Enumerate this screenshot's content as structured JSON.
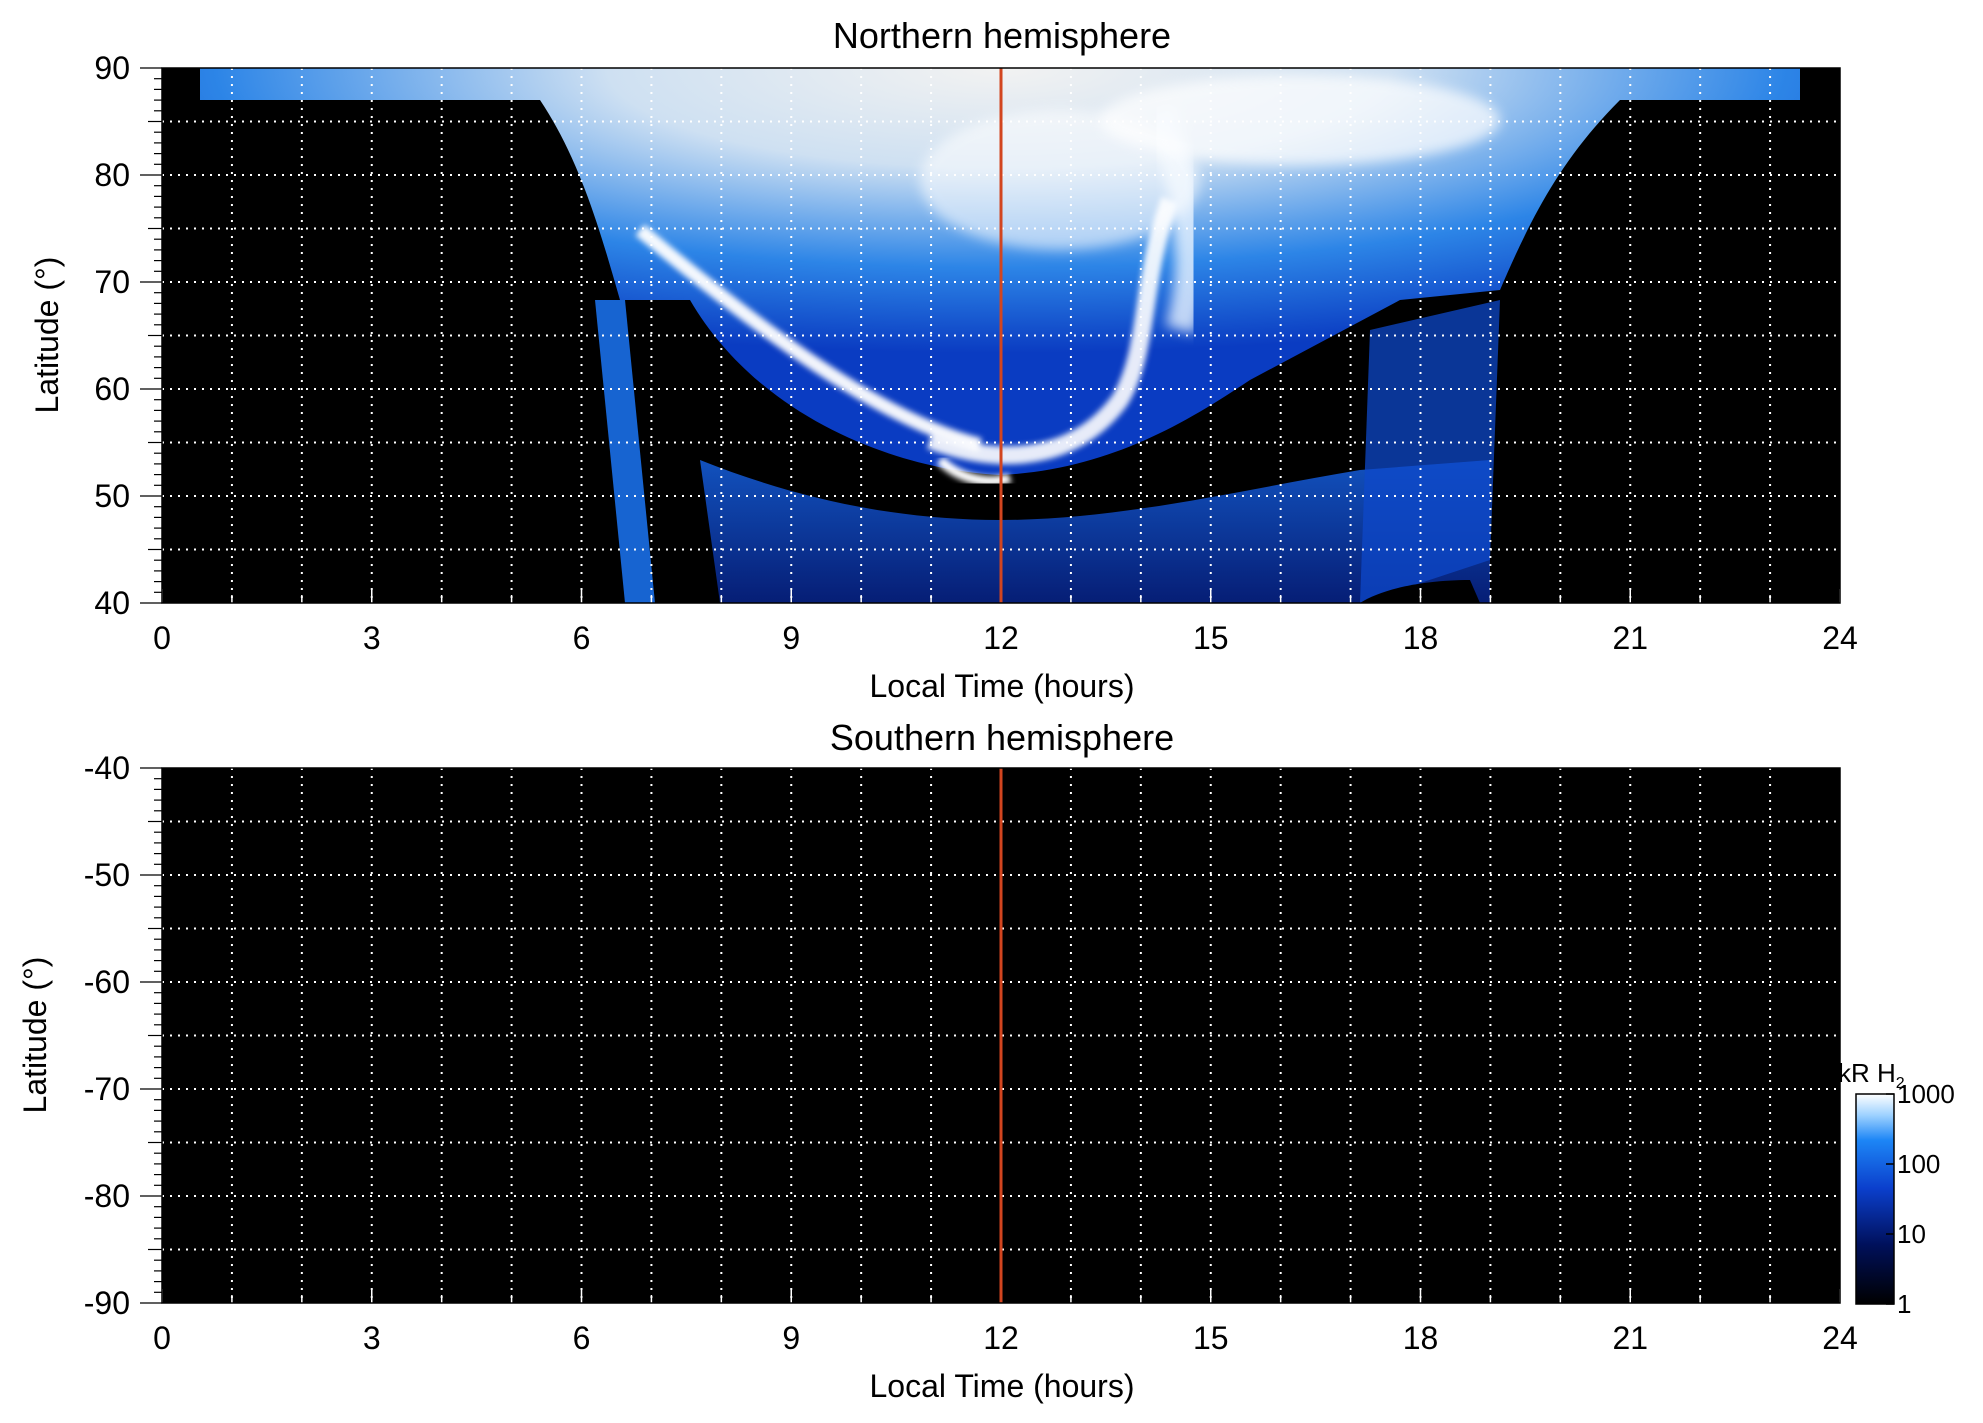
{
  "chart_data": [
    {
      "type": "heatmap",
      "title": "Northern hemisphere",
      "xlabel": "Local Time (hours)",
      "ylabel": "Latitude (°)",
      "xlim": [
        0,
        24
      ],
      "ylim": [
        40,
        90
      ],
      "xticks": [
        0,
        3,
        6,
        9,
        12,
        15,
        18,
        21,
        24
      ],
      "yticks": [
        40,
        50,
        60,
        70,
        80,
        90
      ],
      "grid": true,
      "marker_line_x": 12,
      "marker_line_color": "#d2451f",
      "emission_present": true
    },
    {
      "type": "heatmap",
      "title": "Southern hemisphere",
      "xlabel": "Local Time (hours)",
      "ylabel": "Latitude (°)",
      "xlim": [
        0,
        24
      ],
      "ylim": [
        -90,
        -40
      ],
      "xticks": [
        0,
        3,
        6,
        9,
        12,
        15,
        18,
        21,
        24
      ],
      "yticks": [
        -40,
        -50,
        -60,
        -70,
        -80,
        -90
      ],
      "grid": true,
      "marker_line_x": 12,
      "marker_line_color": "#d2451f",
      "emission_present": false
    }
  ],
  "colorbar": {
    "label_main": "kR H",
    "label_sub": "2",
    "scale": "log",
    "range": [
      1,
      1000
    ],
    "ticks": [
      "1000",
      "100",
      "10",
      "1"
    ],
    "colors": [
      "#000000",
      "#00105a",
      "#0b3fcc",
      "#1d86f6",
      "#ffffff"
    ]
  }
}
